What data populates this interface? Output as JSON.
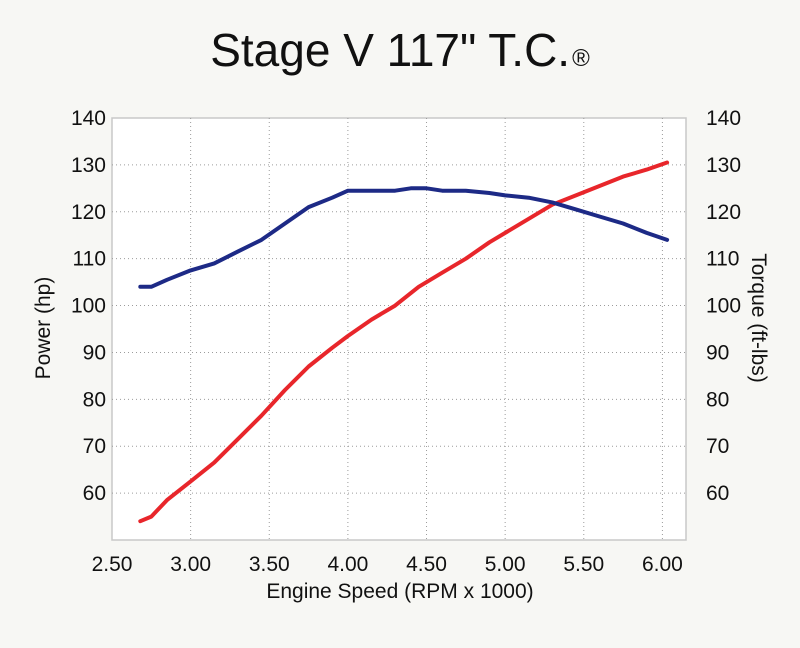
{
  "chart_data": {
    "type": "line",
    "title": "Stage V 117\" T.C.",
    "title_mark": "®",
    "xlabel": "Engine Speed (RPM x 1000)",
    "ylabel_left": "Power (hp)",
    "ylabel_right": "Torque (ft-lbs)",
    "xlim": [
      2.5,
      6.15
    ],
    "ylim": [
      50,
      140
    ],
    "x_ticks": [
      "2.50",
      "3.00",
      "3.50",
      "4.00",
      "4.50",
      "5.00",
      "5.50",
      "6.00"
    ],
    "y_ticks": [
      "60",
      "70",
      "80",
      "90",
      "100",
      "110",
      "120",
      "130",
      "140"
    ],
    "grid": true,
    "series": [
      {
        "key": "power",
        "color": "#e8262b",
        "axis": "left",
        "x": [
          2.68,
          2.75,
          2.85,
          3.0,
          3.15,
          3.3,
          3.45,
          3.6,
          3.75,
          3.9,
          4.0,
          4.15,
          4.3,
          4.45,
          4.6,
          4.75,
          4.9,
          5.0,
          5.15,
          5.3,
          5.45,
          5.6,
          5.75,
          5.9,
          6.03
        ],
        "y": [
          54,
          55,
          58.5,
          62.5,
          66.5,
          71.5,
          76.5,
          82,
          87,
          91,
          93.5,
          97,
          100,
          104,
          107,
          110,
          113.5,
          115.5,
          118.5,
          121.5,
          123.5,
          125.5,
          127.5,
          129,
          130.5
        ]
      },
      {
        "key": "torque",
        "color": "#1d2a86",
        "axis": "right",
        "x": [
          2.68,
          2.75,
          2.85,
          3.0,
          3.15,
          3.3,
          3.45,
          3.6,
          3.75,
          3.9,
          4.0,
          4.15,
          4.3,
          4.4,
          4.5,
          4.6,
          4.75,
          4.9,
          5.0,
          5.15,
          5.3,
          5.45,
          5.6,
          5.75,
          5.9,
          6.03
        ],
        "y": [
          104,
          104,
          105.5,
          107.5,
          109,
          111.5,
          114,
          117.5,
          121,
          123,
          124.5,
          124.5,
          124.5,
          125,
          125,
          124.5,
          124.5,
          124,
          123.5,
          123,
          122,
          120.5,
          119,
          117.5,
          115.5,
          114
        ]
      }
    ]
  }
}
